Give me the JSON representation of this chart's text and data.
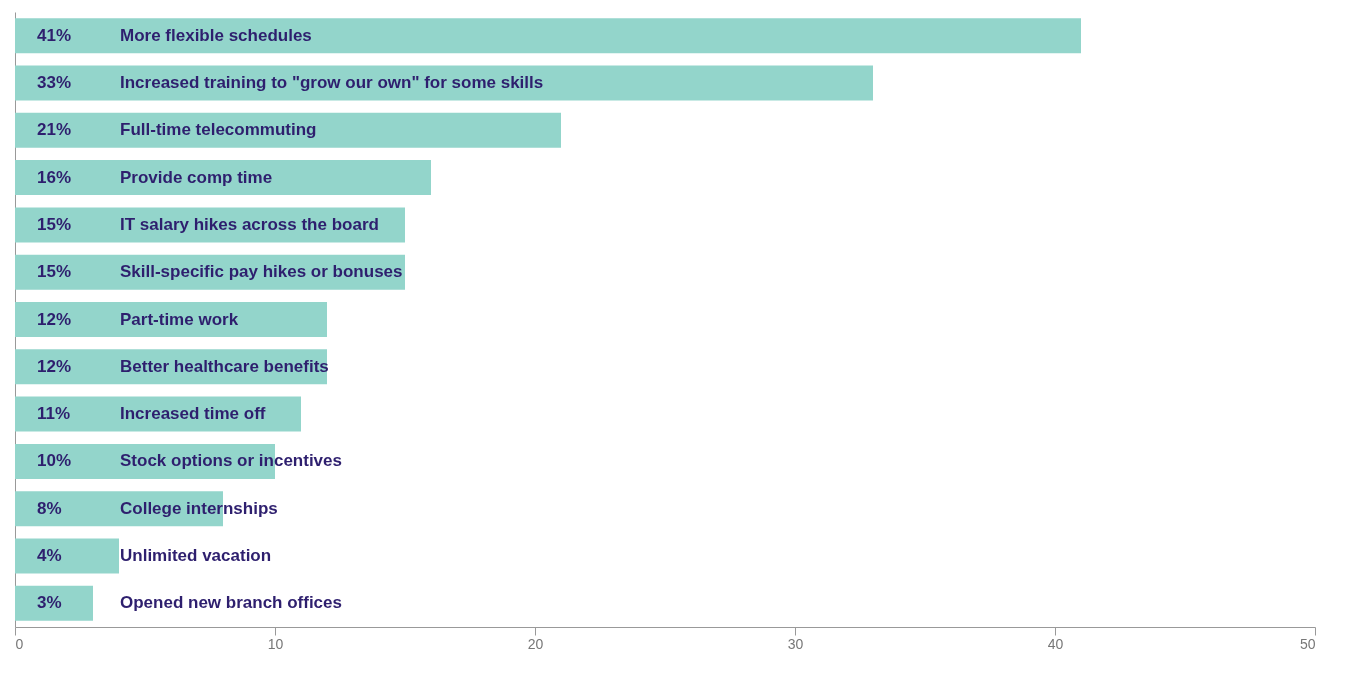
{
  "chart_data": {
    "type": "bar",
    "orientation": "horizontal",
    "categories": [
      "More flexible schedules",
      "Increased training to \"grow our own\" for some skills",
      "Full-time telecommuting",
      "Provide comp time",
      "IT salary hikes across the board",
      "Skill-specific pay hikes or bonuses",
      "Part-time work",
      "Better healthcare benefits",
      "Increased time off",
      "Stock options or incentives",
      "College internships",
      "Unlimited vacation",
      "Opened new branch offices"
    ],
    "values": [
      41,
      33,
      21,
      16,
      15,
      15,
      12,
      12,
      11,
      10,
      8,
      4,
      3
    ],
    "value_labels": [
      "41%",
      "33%",
      "21%",
      "16%",
      "15%",
      "15%",
      "12%",
      "12%",
      "11%",
      "10%",
      "8%",
      "4%",
      "3%"
    ],
    "color": "#93d5cb",
    "xlim": [
      0,
      50
    ],
    "xticks": [
      0,
      10,
      20,
      30,
      40,
      50
    ],
    "grid": false
  }
}
